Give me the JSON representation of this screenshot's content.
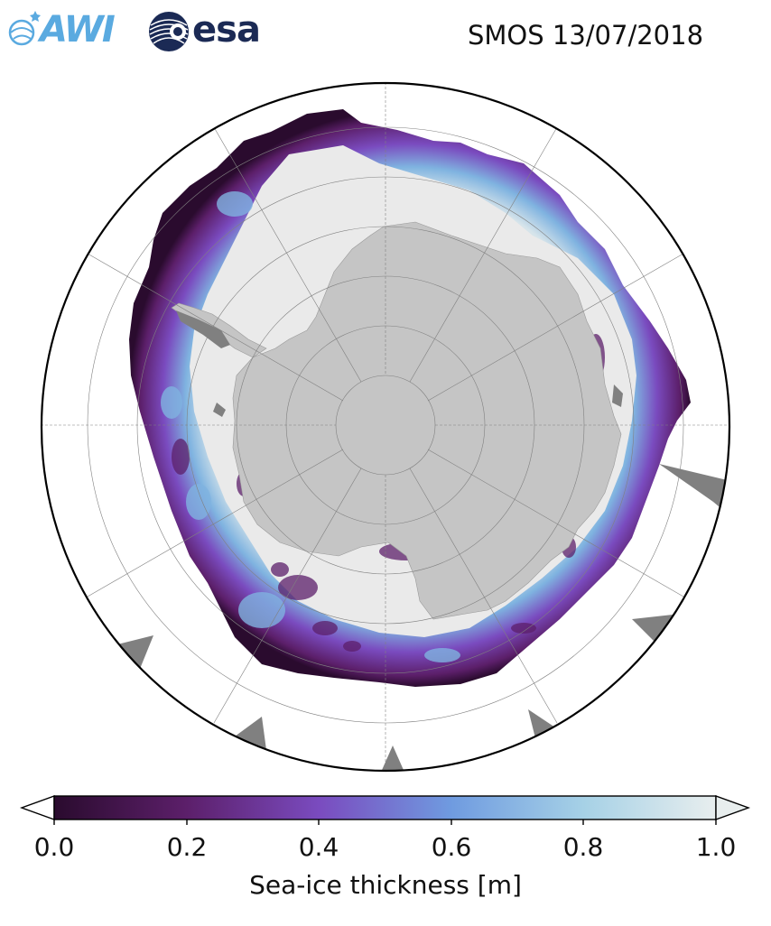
{
  "header": {
    "title": "SMOS 13/07/2018",
    "logos": [
      {
        "name": "awi-logo",
        "text": "AWI"
      },
      {
        "name": "esa-logo",
        "text": "esa"
      }
    ]
  },
  "map": {
    "projection": "south-polar-stereographic",
    "ice_color_scale": "purple-to-white",
    "land_color": "#c5c5c5",
    "ocean_color": "#ffffff",
    "shelf_color": "#808080"
  },
  "colorbar": {
    "label": "Sea-ice thickness [m]",
    "ticks": [
      "0.0",
      "0.2",
      "0.4",
      "0.6",
      "0.8",
      "1.0"
    ],
    "range": [
      0.0,
      1.0
    ],
    "extend": "both",
    "colors": [
      "#2a0b2e",
      "#5c1f6a",
      "#7a4bbf",
      "#6f9be0",
      "#a6d1e6",
      "#e8eeee"
    ]
  }
}
